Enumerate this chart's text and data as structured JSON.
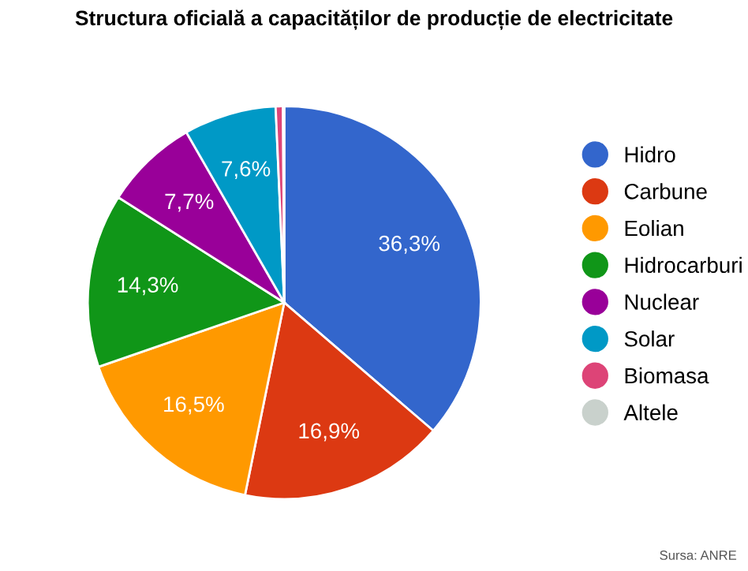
{
  "chart_data": {
    "type": "pie",
    "title": "Structura oficială a capacităților de producție de electricitate",
    "categories": [
      "Hidro",
      "Carbune",
      "Eolian",
      "Hidrocarburi",
      "Nuclear",
      "Solar",
      "Biomasa",
      "Altele"
    ],
    "values": [
      36.3,
      16.9,
      16.5,
      14.3,
      7.7,
      7.6,
      0.6,
      0.1
    ],
    "value_labels": [
      "36,3%",
      "16,9%",
      "16,5%",
      "14,3%",
      "7,7%",
      "7,6%",
      null,
      null
    ],
    "colors": [
      "#3366cc",
      "#dc3912",
      "#ff9900",
      "#109618",
      "#990099",
      "#0099c6",
      "#dd4477",
      "#c9d1cc"
    ],
    "legend": "right",
    "annotations": [
      "Sursa: ANRE"
    ]
  }
}
